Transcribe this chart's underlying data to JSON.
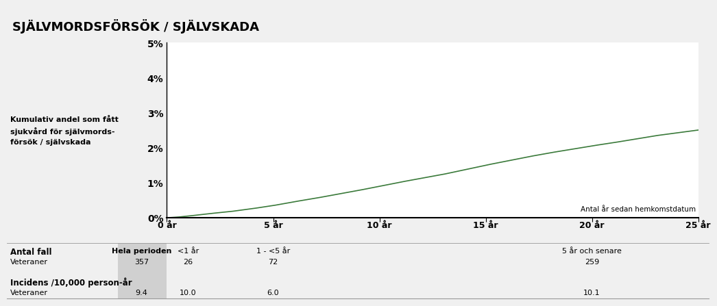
{
  "title": "SJÄLVMORDSFÖRSÖK / SJÄLVSKADA",
  "title_bg": "#c8c8c8",
  "ylabel_text": "Kumulativ andel som fått\nsjukvård för självmords-\nförsök / självskada",
  "xlabel_annotation": "Antal år sedan hemkomstdatum",
  "yticks": [
    0,
    1,
    2,
    3,
    4,
    5
  ],
  "ytick_labels": [
    "0%",
    "1%",
    "2%",
    "3%",
    "4%",
    "5%"
  ],
  "xtick_positions": [
    0,
    5,
    10,
    15,
    20,
    25
  ],
  "xtick_labels": [
    "0 år",
    "5 år",
    "10 år",
    "15 år",
    "20 år",
    "25 år"
  ],
  "xlim": [
    0,
    25
  ],
  "ylim": [
    0,
    5
  ],
  "line_color": "#3a7a3a",
  "line_width": 1.2,
  "plot_bg": "#ffffff",
  "outer_bg": "#f0f0f0",
  "curve_x": [
    0,
    0.5,
    1,
    2,
    3,
    4,
    5,
    6,
    7,
    8,
    9,
    10,
    11,
    12,
    13,
    14,
    15,
    16,
    17,
    18,
    19,
    20,
    21,
    22,
    23,
    24,
    25
  ],
  "curve_y": [
    0,
    0.02,
    0.05,
    0.12,
    0.18,
    0.26,
    0.35,
    0.46,
    0.56,
    0.67,
    0.78,
    0.9,
    1.02,
    1.13,
    1.24,
    1.37,
    1.5,
    1.62,
    1.74,
    1.85,
    1.95,
    2.05,
    2.14,
    2.24,
    2.34,
    2.42,
    2.5
  ],
  "shade_color": "#d0d0d0",
  "table_sep_color": "#999999",
  "row1_label": "Antal fall",
  "row1_col1_header": "Hela perioden",
  "row1_col2_header": "<1 år",
  "row1_col3_header": "1 - <5 år",
  "row1_col5_header": "5 år och senare",
  "row2_label": "Veteraner",
  "row2_col1": "357",
  "row2_col2": "26",
  "row2_col3": "72",
  "row2_col5": "259",
  "row3_label": "Incidens /10,000 person-år",
  "row4_label": "Veteraner",
  "row4_col1": "9.4",
  "row4_col2": "10.0",
  "row4_col3": "6.0",
  "row4_col5": "10.1"
}
